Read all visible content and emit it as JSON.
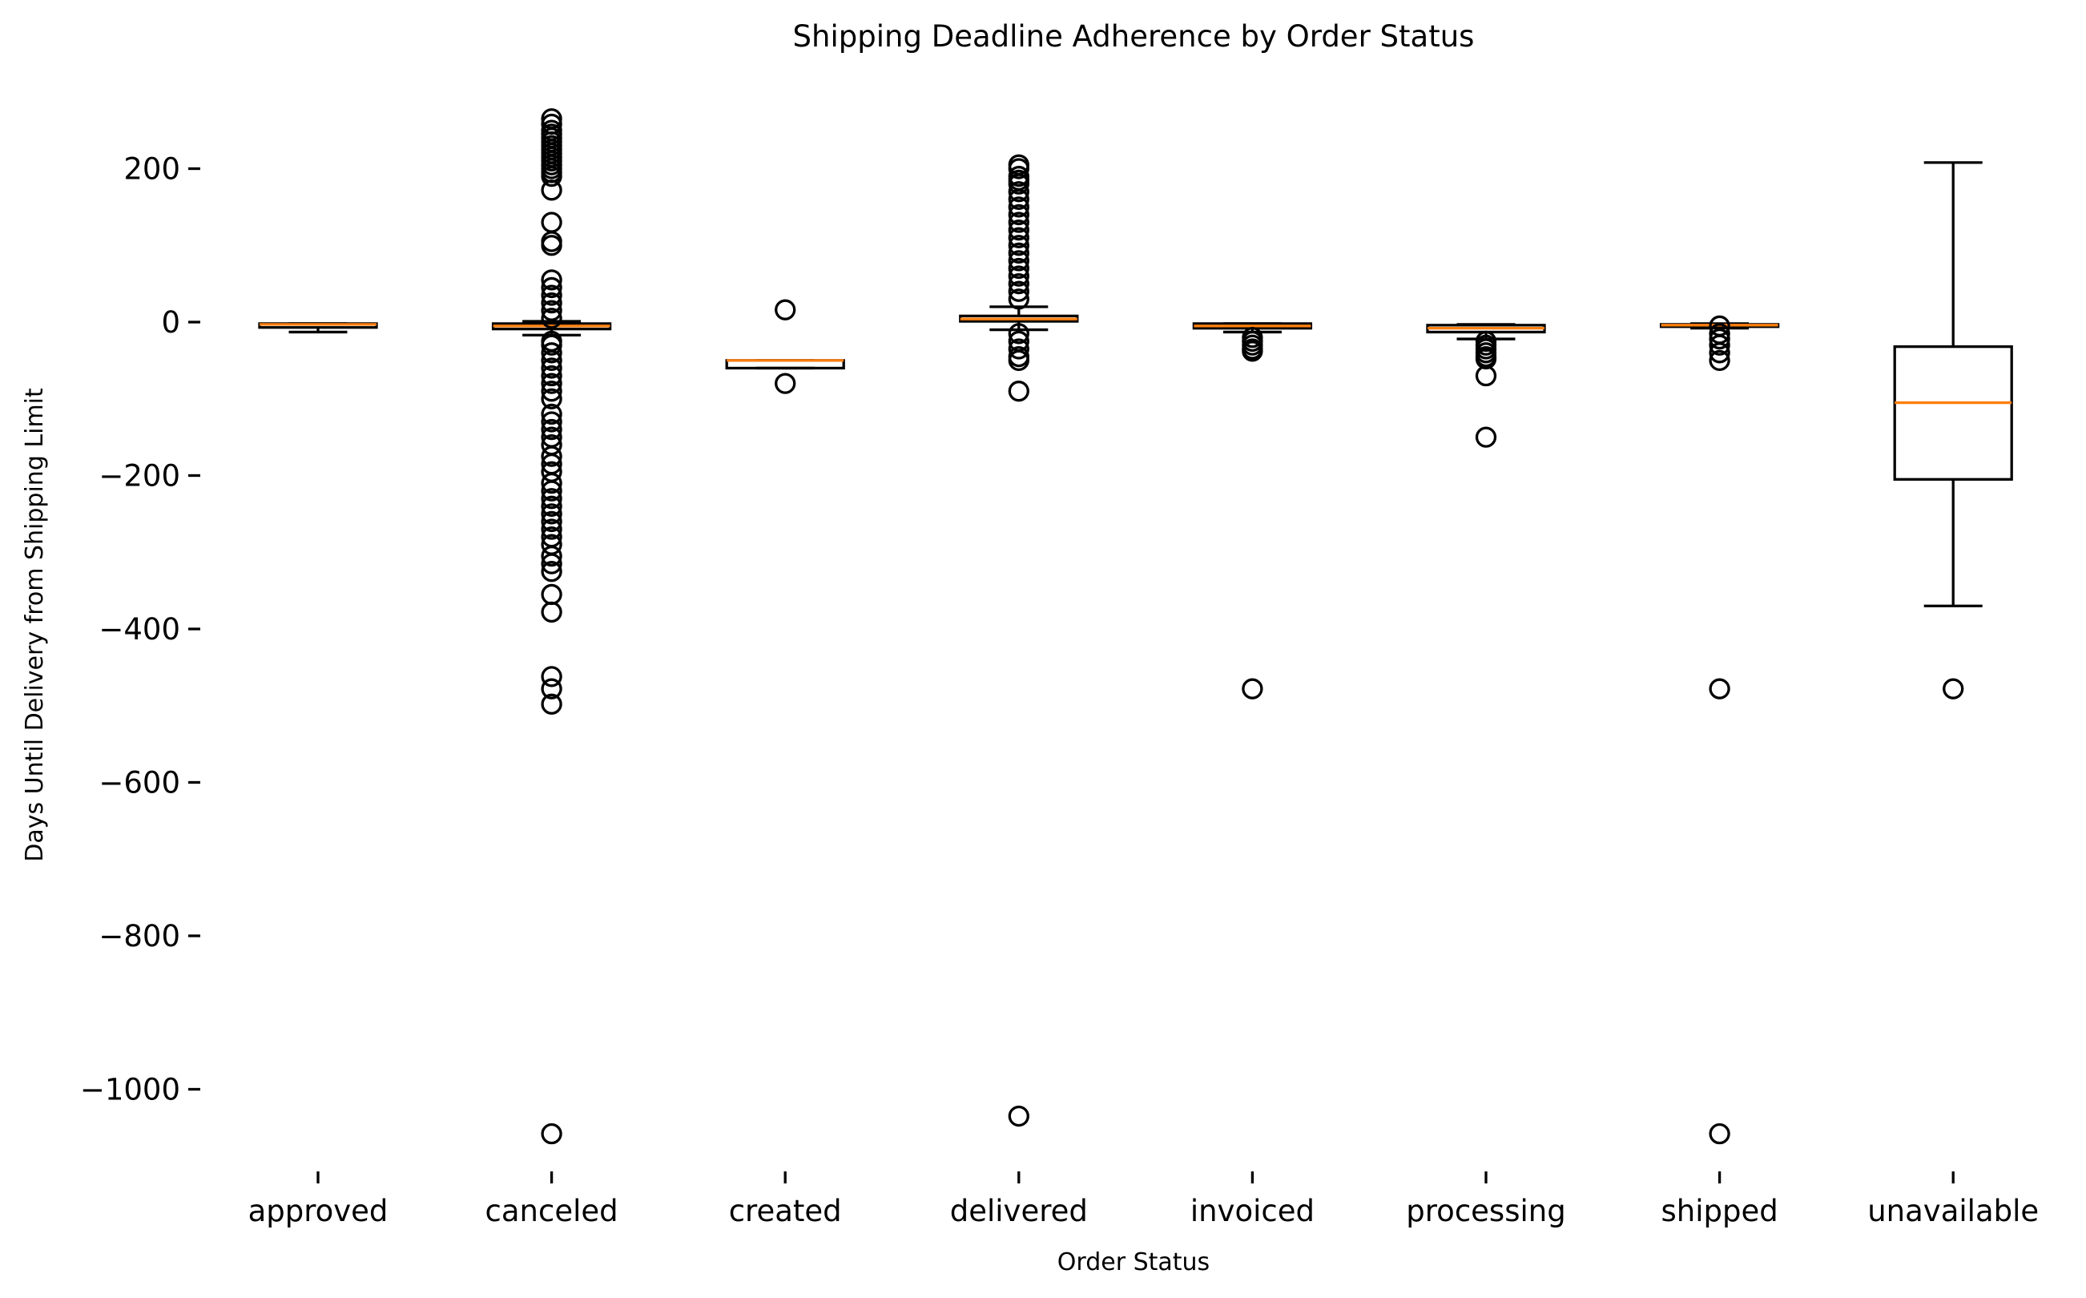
{
  "chart_data": {
    "type": "box",
    "title": "Shipping Deadline Adherence by Order Status",
    "xlabel": "Order Status",
    "ylabel": "Days Until Delivery from Shipping Limit",
    "ylim": [
      -1120,
      320
    ],
    "yticks": [
      {
        "value": 200,
        "label": "200"
      },
      {
        "value": 0,
        "label": "0"
      },
      {
        "value": -200,
        "label": "−200"
      },
      {
        "value": -400,
        "label": "−400"
      },
      {
        "value": -600,
        "label": "−600"
      },
      {
        "value": -800,
        "label": "−800"
      },
      {
        "value": -1000,
        "label": "−1000"
      }
    ],
    "grid": false,
    "colors": {
      "box": "#000000",
      "median": "#ff7f0e",
      "flier": "#000000"
    },
    "categories": [
      "approved",
      "canceled",
      "created",
      "delivered",
      "invoiced",
      "processing",
      "shipped",
      "unavailable"
    ],
    "boxes": [
      {
        "category": "approved",
        "whisker_low": -13,
        "q1": -7,
        "median": -3,
        "q3": -2,
        "whisker_high": -2,
        "fliers": []
      },
      {
        "category": "canceled",
        "whisker_low": -17,
        "q1": -9,
        "median": -5,
        "q3": -2,
        "whisker_high": 1,
        "fliers": [
          265,
          258,
          250,
          245,
          240,
          235,
          230,
          225,
          220,
          215,
          210,
          205,
          200,
          195,
          190,
          172,
          130,
          105,
          100,
          55,
          45,
          35,
          25,
          15,
          5,
          -25,
          -30,
          -40,
          -50,
          -60,
          -70,
          -80,
          -90,
          -100,
          -120,
          -130,
          -140,
          -150,
          -160,
          -175,
          -185,
          -195,
          -210,
          -220,
          -230,
          -240,
          -250,
          -260,
          -270,
          -280,
          -290,
          -305,
          -315,
          -325,
          -355,
          -378,
          -462,
          -478,
          -498,
          -1058
        ]
      },
      {
        "category": "created",
        "whisker_low": -60,
        "q1": -60,
        "median": -50,
        "q3": -50,
        "whisker_high": -50,
        "fliers": [
          16,
          -80
        ]
      },
      {
        "category": "delivered",
        "whisker_low": -10,
        "q1": 1,
        "median": 4,
        "q3": 8,
        "whisker_high": 20,
        "fliers": [
          205,
          200,
          190,
          185,
          180,
          170,
          160,
          150,
          140,
          130,
          120,
          110,
          100,
          90,
          80,
          70,
          60,
          50,
          40,
          30,
          -15,
          -25,
          -35,
          -45,
          -50,
          -90,
          -1035
        ]
      },
      {
        "category": "invoiced",
        "whisker_low": -13,
        "q1": -8,
        "median": -5,
        "q3": -2,
        "whisker_high": -2,
        "fliers": [
          -20,
          -25,
          -30,
          -35,
          -38,
          -478
        ]
      },
      {
        "category": "processing",
        "whisker_low": -22,
        "q1": -13,
        "median": -8,
        "q3": -4,
        "whisker_high": -3,
        "fliers": [
          -25,
          -30,
          -35,
          -40,
          -45,
          -48,
          -70,
          -150
        ]
      },
      {
        "category": "shipped",
        "whisker_low": -8,
        "q1": -6,
        "median": -4,
        "q3": -3,
        "whisker_high": -2,
        "fliers": [
          -5,
          -15,
          -22,
          -30,
          -40,
          -50,
          -478,
          -1058
        ]
      },
      {
        "category": "unavailable",
        "whisker_low": -370,
        "q1": -205,
        "median": -105,
        "q3": -32,
        "whisker_high": 208,
        "fliers": [
          -478
        ]
      }
    ]
  }
}
